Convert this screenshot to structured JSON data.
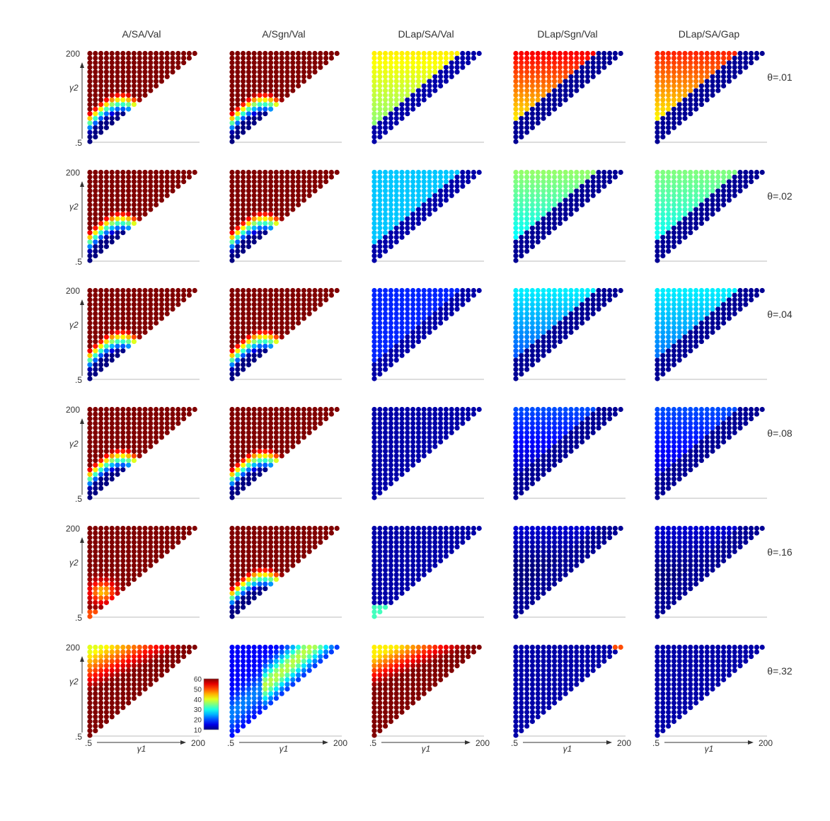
{
  "chart_data": {
    "type": "scatter",
    "layout": "small-multiples grid",
    "columns": [
      "A/SA/Val",
      "A/Sgn/Val",
      "DLap/SA/Val",
      "DLap/Sgn/Val",
      "DLap/SA/Gap"
    ],
    "rows": [
      "θ=.01",
      "θ=.02",
      "θ=.04",
      "θ=.08",
      "θ=.16",
      "θ=.32"
    ],
    "xlabel": "γ1",
    "ylabel": "γ2",
    "x_tick_labels": [
      ".5",
      "200"
    ],
    "y_tick_labels": [
      ".5",
      "200"
    ],
    "xlim": [
      0.5,
      200
    ],
    "ylim": [
      0.5,
      200
    ],
    "grid_points_per_axis": 20,
    "domain": "upper-left triangle (γ2 ≥ γ1)",
    "colorscale": "jet",
    "colorbar": {
      "min": 10,
      "max": 60,
      "ticks": [
        "60",
        "50",
        "40",
        "30",
        "20",
        "10"
      ],
      "placement": "inside bottom-left panel, lower right"
    },
    "approx_value_ranges": [
      [
        [
          10,
          60
        ],
        [
          10,
          60
        ],
        [
          20,
          45
        ],
        [
          10,
          55
        ],
        [
          10,
          55
        ]
      ],
      [
        [
          10,
          60
        ],
        [
          10,
          60
        ],
        [
          15,
          30
        ],
        [
          10,
          45
        ],
        [
          10,
          42
        ]
      ],
      [
        [
          10,
          60
        ],
        [
          10,
          60
        ],
        [
          12,
          20
        ],
        [
          12,
          30
        ],
        [
          12,
          32
        ]
      ],
      [
        [
          10,
          60
        ],
        [
          10,
          60
        ],
        [
          10,
          13
        ],
        [
          14,
          22
        ],
        [
          14,
          22
        ]
      ],
      [
        [
          10,
          60
        ],
        [
          10,
          60
        ],
        [
          10,
          45
        ],
        [
          10,
          25
        ],
        [
          10,
          16
        ]
      ],
      [
        [
          40,
          60
        ],
        [
          12,
          35
        ],
        [
          45,
          60
        ],
        [
          10,
          50
        ],
        [
          10,
          20
        ]
      ]
    ]
  }
}
